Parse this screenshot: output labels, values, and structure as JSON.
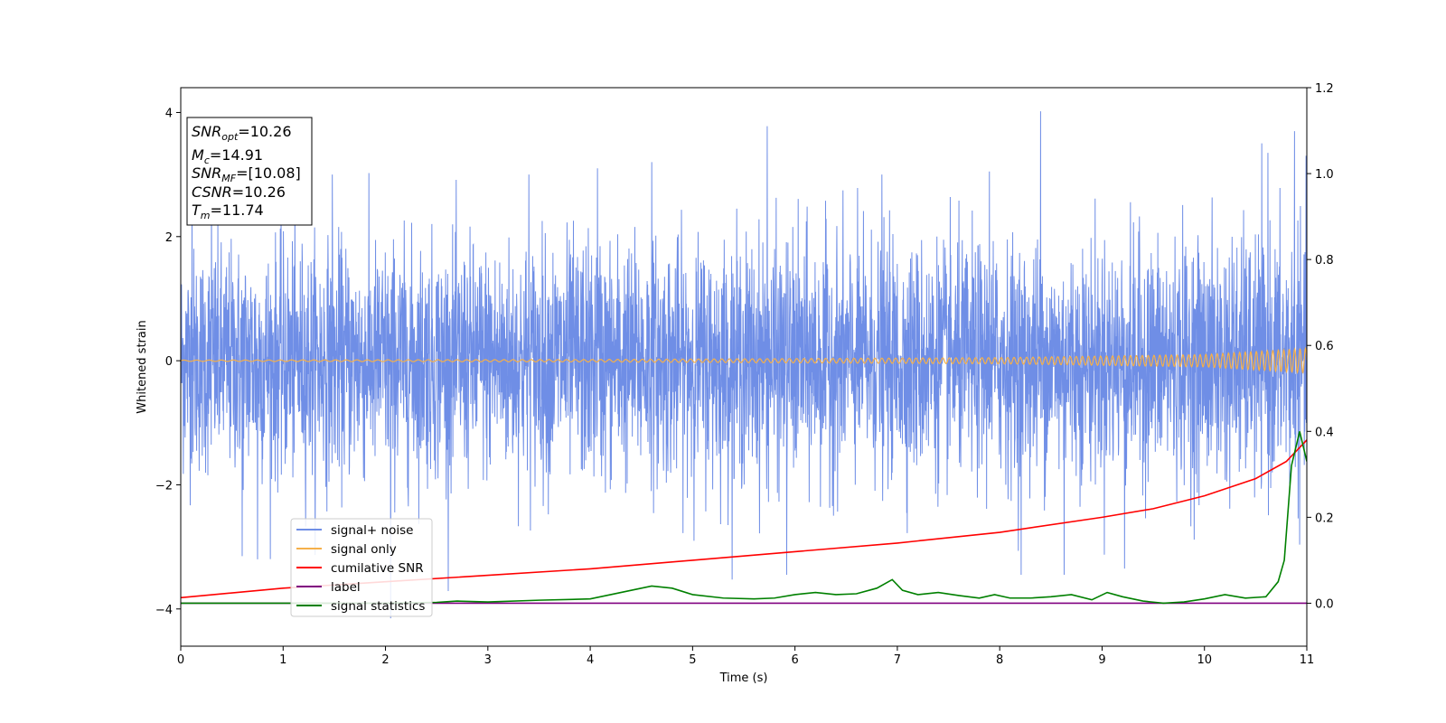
{
  "chart_data": {
    "type": "line",
    "xlabel": "Time (s)",
    "ylabel": "Whitened strain",
    "xlim": [
      0,
      11
    ],
    "ylim": [
      -4.6,
      4.4
    ],
    "y2lim": [
      -0.1,
      1.2
    ],
    "xticks": [
      "0",
      "1",
      "2",
      "3",
      "4",
      "5",
      "6",
      "7",
      "8",
      "9",
      "10",
      "11"
    ],
    "yticks": [
      "4",
      "2",
      "0",
      "−2",
      "−4"
    ],
    "y2ticks": [
      "1.2",
      "1.0",
      "0.8",
      "0.6",
      "0.4",
      "0.2",
      "0.0"
    ],
    "grid": false,
    "legend_position": "lower-left",
    "info_box": {
      "lines": [
        {
          "sym": "SNR",
          "sub": "opt",
          "val": "=10.26"
        },
        {
          "sym": "M",
          "sub": "c",
          "val": "=14.91"
        },
        {
          "sym": "SNR",
          "sub": "MF",
          "val": "=[10.08]"
        },
        {
          "sym": "CSNR",
          "sub": "",
          "val": "=10.26"
        },
        {
          "sym": "T",
          "sub": "m",
          "val": "=11.74"
        }
      ]
    },
    "series": [
      {
        "name": "signal+ noise",
        "axis": "left",
        "color": "#6f8ee6",
        "description_envelope": {
          "x": [
            0,
            1,
            2,
            3,
            4,
            5,
            6,
            7,
            8,
            9,
            10,
            11
          ],
          "typical_max": [
            2.3,
            2.4,
            2.4,
            2.4,
            2.5,
            2.4,
            2.5,
            2.4,
            2.4,
            2.4,
            2.5,
            2.6
          ],
          "typical_min": [
            -2.3,
            -2.4,
            -2.4,
            -2.4,
            -2.4,
            -2.4,
            -2.4,
            -2.4,
            -2.4,
            -2.4,
            -2.5,
            -2.6
          ]
        },
        "peaks": [
          [
            0.11,
            2.75
          ],
          [
            0.3,
            2.9
          ],
          [
            0.6,
            -3.15
          ],
          [
            0.75,
            -3.2
          ],
          [
            1.48,
            3.0
          ],
          [
            2.05,
            -4.15
          ],
          [
            4.07,
            3.1
          ],
          [
            4.6,
            3.2
          ],
          [
            5.73,
            3.78
          ],
          [
            5.92,
            -3.45
          ],
          [
            8.21,
            -3.45
          ],
          [
            8.4,
            4.02
          ],
          [
            8.63,
            -3.45
          ],
          [
            9.22,
            -3.35
          ],
          [
            10.62,
            3.35
          ],
          [
            10.88,
            3.7
          ],
          [
            3.4,
            3.0
          ],
          [
            6.85,
            3.0
          ],
          [
            7.9,
            3.05
          ]
        ]
      },
      {
        "name": "signal only",
        "axis": "left",
        "color": "#f5b04a",
        "amplitude_envelope": {
          "x": [
            0,
            4,
            8,
            10,
            11
          ],
          "amp": [
            0.01,
            0.02,
            0.05,
            0.1,
            0.2
          ]
        }
      },
      {
        "name": "cumilative SNR",
        "axis": "right",
        "color": "#ff0000",
        "x": [
          0,
          1,
          2,
          3,
          4,
          5,
          6,
          7,
          8,
          9,
          9.5,
          10,
          10.5,
          10.8,
          11
        ],
        "values": [
          0.013,
          0.035,
          0.05,
          0.065,
          0.08,
          0.1,
          0.12,
          0.14,
          0.165,
          0.2,
          0.22,
          0.25,
          0.29,
          0.33,
          0.38
        ]
      },
      {
        "name": "label",
        "axis": "right",
        "color": "#800080",
        "x": [
          0,
          11
        ],
        "values": [
          0.0,
          0.0
        ]
      },
      {
        "name": "signal statistics",
        "axis": "right",
        "color": "#008000",
        "x": [
          0,
          1,
          2,
          2.5,
          2.7,
          3,
          3.5,
          4,
          4.2,
          4.4,
          4.6,
          4.8,
          5,
          5.3,
          5.6,
          5.8,
          6,
          6.2,
          6.4,
          6.6,
          6.8,
          6.95,
          7.05,
          7.2,
          7.4,
          7.6,
          7.8,
          7.95,
          8.1,
          8.3,
          8.5,
          8.7,
          8.9,
          9.05,
          9.2,
          9.4,
          9.6,
          9.8,
          10,
          10.2,
          10.4,
          10.6,
          10.72,
          10.78,
          10.85,
          10.93,
          11
        ],
        "values": [
          0.0,
          0.0,
          0.0,
          0.002,
          0.005,
          0.003,
          0.007,
          0.01,
          0.02,
          0.03,
          0.04,
          0.035,
          0.02,
          0.012,
          0.01,
          0.012,
          0.02,
          0.025,
          0.02,
          0.022,
          0.035,
          0.055,
          0.03,
          0.02,
          0.025,
          0.018,
          0.012,
          0.02,
          0.012,
          0.012,
          0.015,
          0.02,
          0.008,
          0.025,
          0.015,
          0.005,
          0.0,
          0.003,
          0.01,
          0.02,
          0.012,
          0.015,
          0.05,
          0.1,
          0.32,
          0.4,
          0.33
        ]
      }
    ]
  }
}
